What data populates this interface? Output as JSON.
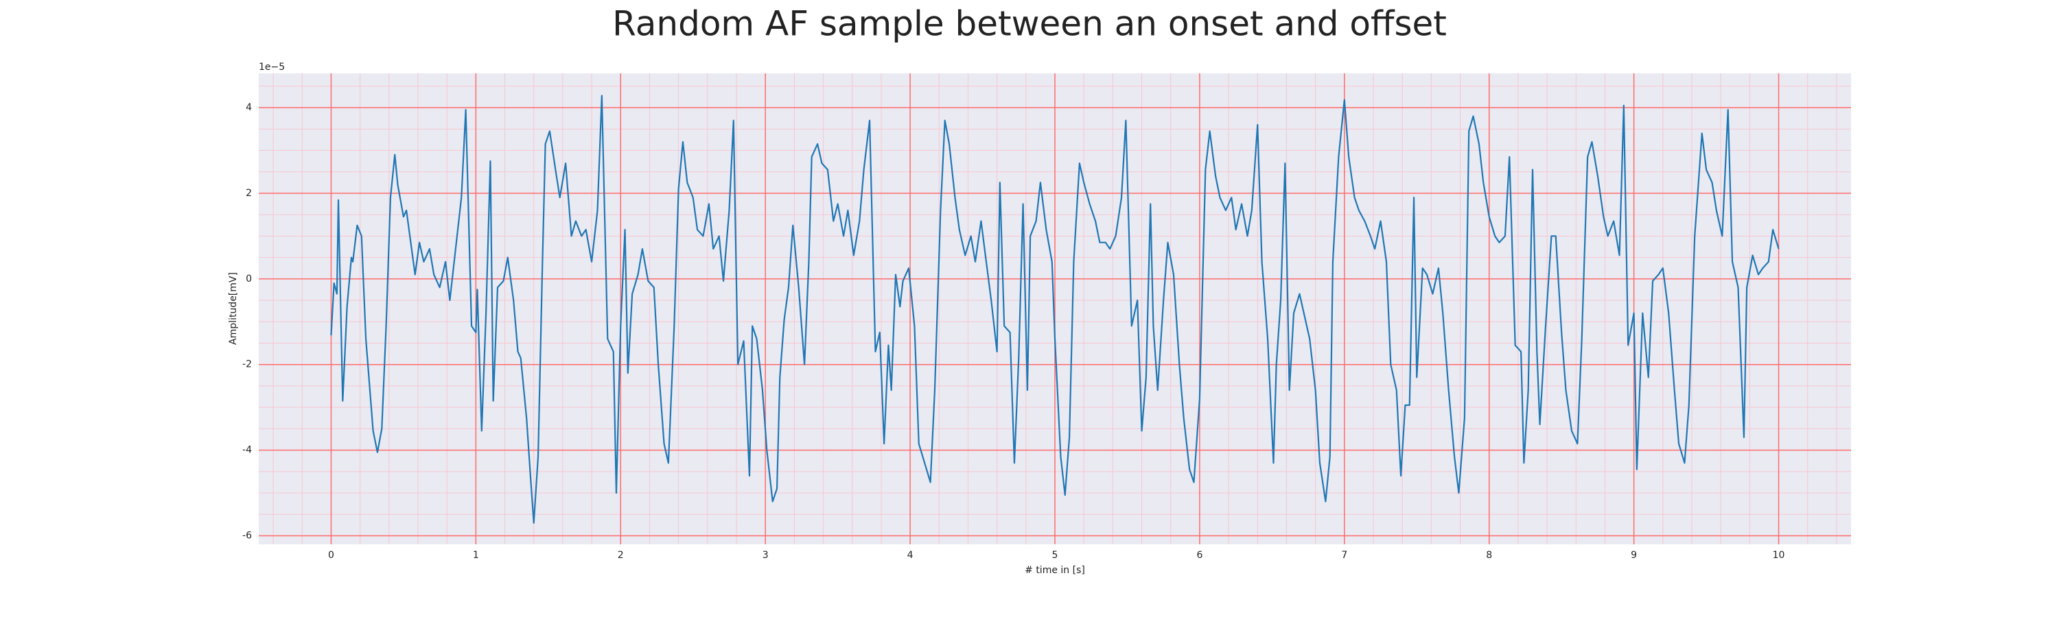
{
  "chart_data": {
    "type": "line",
    "title": "Random AF sample between an onset and offset",
    "xlabel": "# time in [s]",
    "ylabel": "Amplitude[mV]",
    "y_offset_text": "1e−5",
    "color": "#1f77b4",
    "background": "#eaeaf2",
    "grid": true,
    "grid_color": "#ff6b6b",
    "minor_grid_color": "#f7c6d0",
    "xlim": [
      -0.5,
      10.5
    ],
    "ylim": [
      -6.2,
      4.8
    ],
    "xticks": [
      0,
      1,
      2,
      3,
      4,
      5,
      6,
      7,
      8,
      9,
      10
    ],
    "yticks": [
      -6,
      -4,
      -2,
      0,
      2,
      4
    ],
    "xminorticks": [
      -0.4,
      -0.2,
      0.2,
      0.4,
      0.6,
      0.8,
      1.2,
      1.4,
      1.6,
      1.8,
      2.2,
      2.4,
      2.6,
      2.8,
      3.2,
      3.4,
      3.6,
      3.8,
      4.2,
      4.4,
      4.6,
      4.8,
      5.2,
      5.4,
      5.6,
      5.8,
      6.2,
      6.4,
      6.6,
      6.8,
      7.2,
      7.4,
      7.6,
      7.8,
      8.2,
      8.4,
      8.6,
      8.8,
      9.2,
      9.4,
      9.6,
      9.8,
      10.2,
      10.4
    ],
    "yminorticks": [
      -5.5,
      -5,
      -4.5,
      -3.5,
      -3,
      -2.5,
      -1.5,
      -1,
      -0.5,
      0.5,
      1,
      1.5,
      2.5,
      3,
      3.5,
      4.5
    ],
    "x": [
      0.0,
      0.02,
      0.04,
      0.05,
      0.08,
      0.11,
      0.14,
      0.15,
      0.18,
      0.21,
      0.24,
      0.29,
      0.32,
      0.35,
      0.38,
      0.41,
      0.44,
      0.46,
      0.5,
      0.52,
      0.55,
      0.58,
      0.61,
      0.64,
      0.68,
      0.71,
      0.75,
      0.79,
      0.82,
      0.86,
      0.9,
      0.93,
      0.97,
      1.0,
      1.01,
      1.04,
      1.07,
      1.1,
      1.12,
      1.15,
      1.19,
      1.22,
      1.26,
      1.29,
      1.31,
      1.35,
      1.38,
      1.4,
      1.43,
      1.46,
      1.48,
      1.51,
      1.55,
      1.58,
      1.62,
      1.66,
      1.69,
      1.73,
      1.76,
      1.8,
      1.84,
      1.87,
      1.91,
      1.95,
      1.97,
      2.0,
      2.03,
      2.05,
      2.08,
      2.12,
      2.15,
      2.19,
      2.23,
      2.26,
      2.3,
      2.33,
      2.37,
      2.4,
      2.43,
      2.46,
      2.5,
      2.53,
      2.57,
      2.61,
      2.64,
      2.68,
      2.71,
      2.75,
      2.78,
      2.81,
      2.85,
      2.89,
      2.91,
      2.94,
      2.98,
      3.01,
      3.05,
      3.08,
      3.1,
      3.13,
      3.16,
      3.19,
      3.23,
      3.27,
      3.3,
      3.32,
      3.36,
      3.39,
      3.43,
      3.47,
      3.5,
      3.54,
      3.57,
      3.61,
      3.65,
      3.68,
      3.72,
      3.76,
      3.79,
      3.82,
      3.85,
      3.87,
      3.9,
      3.93,
      3.95,
      3.99,
      4.03,
      4.06,
      4.1,
      4.14,
      4.17,
      4.21,
      4.24,
      4.27,
      4.31,
      4.34,
      4.38,
      4.42,
      4.45,
      4.49,
      4.52,
      4.56,
      4.6,
      4.62,
      4.65,
      4.69,
      4.72,
      4.75,
      4.78,
      4.81,
      4.83,
      4.87,
      4.9,
      4.94,
      4.98,
      5.0,
      5.04,
      5.07,
      5.1,
      5.13,
      5.17,
      5.2,
      5.24,
      5.28,
      5.31,
      5.35,
      5.38,
      5.42,
      5.46,
      5.49,
      5.53,
      5.57,
      5.6,
      5.63,
      5.66,
      5.68,
      5.71,
      5.75,
      5.78,
      5.82,
      5.86,
      5.89,
      5.93,
      5.96,
      6.0,
      6.04,
      6.07,
      6.11,
      6.14,
      6.18,
      6.22,
      6.25,
      6.29,
      6.33,
      6.36,
      6.4,
      6.43,
      6.47,
      6.51,
      6.53,
      6.56,
      6.59,
      6.62,
      6.65,
      6.69,
      6.72,
      6.76,
      6.8,
      6.83,
      6.87,
      6.9,
      6.92,
      6.96,
      7.0,
      7.03,
      7.07,
      7.1,
      7.14,
      7.18,
      7.21,
      7.25,
      7.29,
      7.32,
      7.36,
      7.39,
      7.42,
      7.45,
      7.48,
      7.5,
      7.54,
      7.57,
      7.61,
      7.65,
      7.68,
      7.72,
      7.76,
      7.79,
      7.83,
      7.86,
      7.89,
      7.93,
      7.96,
      8.0,
      8.04,
      8.07,
      8.11,
      8.14,
      8.18,
      8.22,
      8.24,
      8.27,
      8.3,
      8.33,
      8.35,
      8.39,
      8.43,
      8.46,
      8.5,
      8.53,
      8.57,
      8.61,
      8.64,
      8.68,
      8.71,
      8.75,
      8.79,
      8.82,
      8.86,
      8.9,
      8.93,
      8.96,
      9.0,
      9.02,
      9.06,
      9.1,
      9.13,
      9.17,
      9.2,
      9.24,
      9.28,
      9.31,
      9.35,
      9.38,
      9.42,
      9.47,
      9.5,
      9.54,
      9.57,
      9.61,
      9.65,
      9.68,
      9.72,
      9.76,
      9.78,
      9.82,
      9.86,
      9.89,
      9.93,
      9.96,
      10.0
    ],
    "values": [
      -1.32,
      -0.1,
      -0.35,
      1.84,
      -2.85,
      -0.65,
      0.5,
      0.4,
      1.25,
      1.0,
      -1.4,
      -3.55,
      -4.05,
      -3.5,
      -1.1,
      1.9,
      2.9,
      2.2,
      1.45,
      1.6,
      0.85,
      0.1,
      0.85,
      0.4,
      0.7,
      0.1,
      -0.2,
      0.4,
      -0.5,
      0.7,
      1.9,
      3.95,
      -1.1,
      -1.25,
      -0.25,
      -3.55,
      -0.8,
      2.75,
      -2.85,
      -0.2,
      -0.05,
      0.5,
      -0.5,
      -1.7,
      -1.85,
      -3.25,
      -4.75,
      -5.7,
      -4.15,
      0.4,
      3.15,
      3.45,
      2.55,
      1.9,
      2.7,
      1.0,
      1.35,
      1.0,
      1.15,
      0.4,
      1.6,
      4.28,
      -1.4,
      -1.7,
      -5.0,
      -1.1,
      1.15,
      -2.2,
      -0.35,
      0.1,
      0.7,
      -0.05,
      -0.2,
      -2.0,
      -3.85,
      -4.3,
      -1.1,
      2.1,
      3.2,
      2.25,
      1.9,
      1.15,
      1.0,
      1.75,
      0.7,
      1.0,
      -0.05,
      1.6,
      3.7,
      -2.0,
      -1.45,
      -4.6,
      -1.1,
      -1.4,
      -2.6,
      -4.0,
      -5.2,
      -4.9,
      -2.3,
      -0.95,
      -0.2,
      1.25,
      -0.2,
      -2.0,
      0.4,
      2.85,
      3.15,
      2.7,
      2.55,
      1.35,
      1.75,
      1.0,
      1.6,
      0.55,
      1.35,
      2.55,
      3.7,
      -1.7,
      -1.25,
      -3.85,
      -1.55,
      -2.6,
      0.1,
      -0.65,
      -0.05,
      0.25,
      -1.1,
      -3.85,
      -4.3,
      -4.75,
      -2.6,
      1.6,
      3.7,
      3.15,
      1.9,
      1.15,
      0.55,
      1.0,
      0.4,
      1.35,
      0.55,
      -0.5,
      -1.7,
      2.25,
      -1.1,
      -1.25,
      -4.3,
      -1.85,
      1.75,
      -2.6,
      1.0,
      1.35,
      2.25,
      1.15,
      0.4,
      -1.4,
      -4.15,
      -5.05,
      -3.7,
      0.4,
      2.7,
      2.25,
      1.75,
      1.35,
      0.85,
      0.85,
      0.7,
      1.0,
      1.9,
      3.7,
      -1.1,
      -0.5,
      -3.55,
      -2.3,
      1.75,
      -1.1,
      -2.6,
      -0.5,
      0.85,
      0.1,
      -2.0,
      -3.25,
      -4.45,
      -4.75,
      -2.8,
      2.55,
      3.45,
      2.4,
      1.9,
      1.6,
      1.9,
      1.15,
      1.75,
      1.0,
      1.6,
      3.6,
      0.4,
      -1.4,
      -4.3,
      -2.0,
      -0.5,
      2.7,
      -2.6,
      -0.8,
      -0.35,
      -0.8,
      -1.4,
      -2.6,
      -4.3,
      -5.2,
      -4.15,
      0.4,
      2.85,
      4.18,
      2.85,
      1.9,
      1.6,
      1.35,
      1.0,
      0.7,
      1.35,
      0.4,
      -2.0,
      -2.6,
      -4.6,
      -2.95,
      -2.95,
      1.9,
      -2.3,
      0.25,
      0.1,
      -0.35,
      0.25,
      -0.8,
      -2.6,
      -4.15,
      -5.0,
      -3.25,
      3.45,
      3.8,
      3.15,
      2.25,
      1.45,
      1.0,
      0.85,
      1.0,
      2.85,
      -1.55,
      -1.7,
      -4.3,
      -2.6,
      2.55,
      -1.7,
      -3.4,
      -1.1,
      1.0,
      1.0,
      -1.25,
      -2.6,
      -3.55,
      -3.85,
      -1.4,
      2.85,
      3.2,
      2.4,
      1.45,
      1.0,
      1.35,
      0.55,
      4.05,
      -1.55,
      -0.8,
      -4.45,
      -0.8,
      -2.3,
      -0.05,
      0.1,
      0.25,
      -0.8,
      -2.6,
      -3.85,
      -4.3,
      -2.95,
      1.0,
      3.4,
      2.55,
      2.25,
      1.6,
      1.0,
      3.95,
      0.4,
      -0.2,
      -3.7,
      -0.2,
      0.55,
      0.1,
      0.25,
      0.4,
      1.15,
      0.7
    ]
  }
}
